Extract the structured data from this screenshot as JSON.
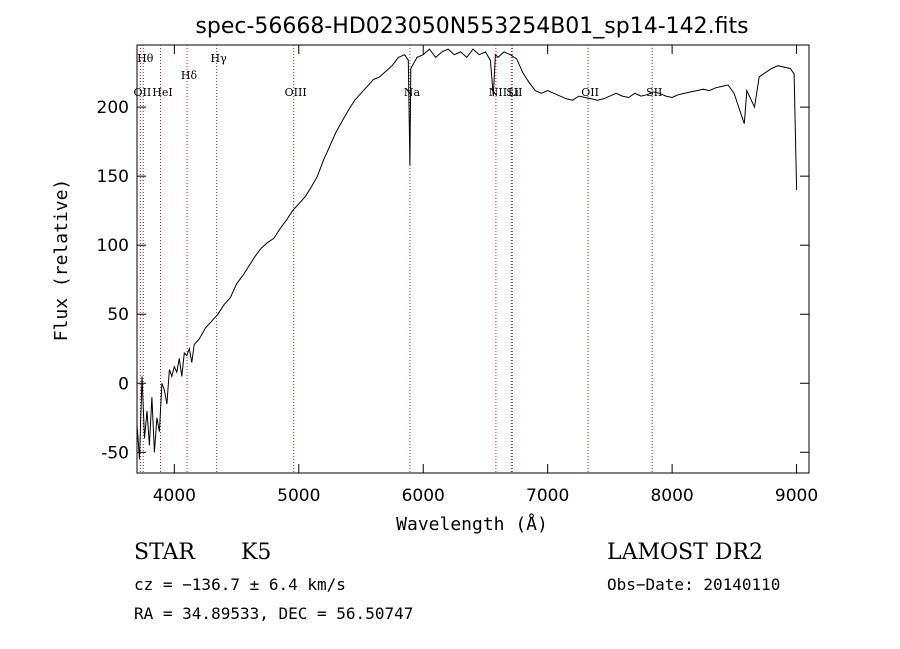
{
  "chart_data": {
    "type": "line",
    "title": "spec-56668-HD023050N553254B01_sp14-142.fits",
    "xlabel": "Wavelength (Å)",
    "ylabel": "Flux (relative)",
    "xlim": [
      3700,
      9100
    ],
    "ylim": [
      -65,
      245
    ],
    "x_ticks": [
      4000,
      5000,
      6000,
      7000,
      8000,
      9000
    ],
    "y_ticks": [
      -50,
      0,
      50,
      100,
      150,
      200
    ],
    "grid": false,
    "series": [
      {
        "x": [
          3700,
          3720,
          3740,
          3760,
          3780,
          3800,
          3820,
          3840,
          3860,
          3880,
          3900,
          3920,
          3940,
          3960,
          3980,
          4000,
          4020,
          4040,
          4060,
          4080,
          4100,
          4120,
          4140,
          4160,
          4180,
          4200,
          4250,
          4300,
          4350,
          4400,
          4450,
          4500,
          4550,
          4600,
          4650,
          4700,
          4750,
          4800,
          4850,
          4900,
          4950,
          5000,
          5050,
          5100,
          5150,
          5200,
          5250,
          5300,
          5350,
          5400,
          5450,
          5500,
          5550,
          5600,
          5650,
          5700,
          5750,
          5800,
          5850,
          5880,
          5893,
          5900,
          5950,
          6000,
          6050,
          6100,
          6150,
          6200,
          6250,
          6300,
          6350,
          6400,
          6450,
          6500,
          6540,
          6563,
          6580,
          6600,
          6650,
          6700,
          6750,
          6800,
          6850,
          6900,
          6950,
          7000,
          7050,
          7100,
          7150,
          7200,
          7250,
          7300,
          7350,
          7400,
          7450,
          7500,
          7550,
          7600,
          7650,
          7700,
          7750,
          7800,
          7850,
          7900,
          7950,
          8000,
          8050,
          8100,
          8150,
          8200,
          8250,
          8300,
          8350,
          8400,
          8450,
          8498,
          8542,
          8580,
          8600,
          8662,
          8700,
          8750,
          8800,
          8850,
          8900,
          8950,
          8980,
          9000
        ],
        "y": [
          -30,
          -55,
          5,
          -40,
          -20,
          -45,
          -10,
          -50,
          -25,
          -35,
          0,
          -5,
          -15,
          10,
          5,
          12,
          8,
          18,
          5,
          22,
          20,
          25,
          15,
          28,
          30,
          32,
          40,
          45,
          50,
          57,
          62,
          72,
          78,
          85,
          92,
          98,
          102,
          105,
          112,
          118,
          125,
          130,
          135,
          142,
          150,
          162,
          172,
          182,
          190,
          198,
          205,
          210,
          215,
          220,
          222,
          226,
          230,
          236,
          238,
          234,
          158,
          228,
          236,
          238,
          242,
          236,
          240,
          242,
          238,
          240,
          236,
          242,
          238,
          240,
          234,
          208,
          238,
          236,
          240,
          238,
          235,
          225,
          218,
          212,
          210,
          212,
          210,
          208,
          206,
          205,
          208,
          207,
          206,
          205,
          206,
          208,
          210,
          208,
          207,
          210,
          208,
          209,
          211,
          210,
          208,
          207,
          209,
          210,
          211,
          212,
          213,
          212,
          214,
          215,
          216,
          210,
          198,
          188,
          212,
          200,
          222,
          225,
          228,
          230,
          229,
          228,
          224,
          140
        ]
      }
    ],
    "lines": [
      {
        "label": "Hθ",
        "x": 3750
      },
      {
        "label": "OII",
        "x": 3727
      },
      {
        "label": "HeI",
        "x": 3889
      },
      {
        "label": "Hδ",
        "x": 4102
      },
      {
        "label": "Hγ",
        "x": 4340
      },
      {
        "label": "OIII",
        "x": 4959
      },
      {
        "label": "Na",
        "x": 5893
      },
      {
        "label": "NII",
        "x": 6584
      },
      {
        "label": "SII",
        "x": 6716
      },
      {
        "label": "Li",
        "x": 6708
      },
      {
        "label": "OII",
        "x": 7325
      },
      {
        "label": "SII",
        "x": 7840
      }
    ]
  },
  "info": {
    "class_label": "STAR",
    "subclass": "K5",
    "survey": "LAMOST DR2",
    "cz": "cz = −136.7 ± 6.4 km/s",
    "obs_date": "Obs−Date: 20140110",
    "coords": "RA =  34.89533, DEC =  56.50747"
  }
}
